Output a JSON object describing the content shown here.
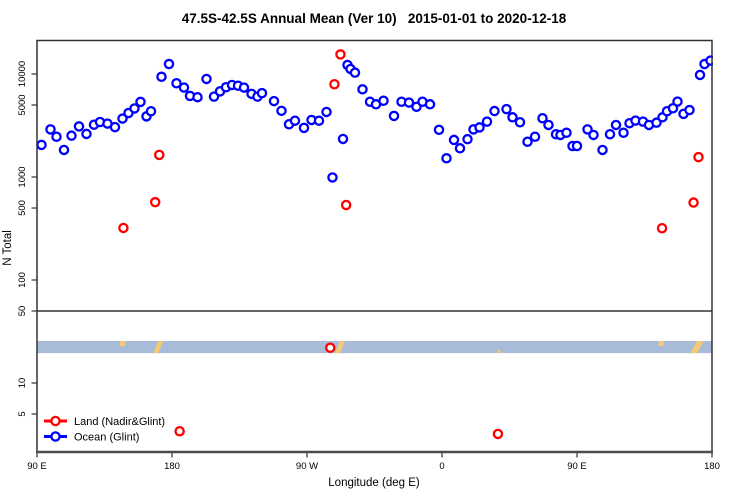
{
  "chart_data": {
    "type": "scatter",
    "title": "47.5S-42.5S Annual Mean (Ver 10)   2015-01-01 to 2020-12-18",
    "xlabel": "Longitude (deg E)",
    "ylabel": "N Total",
    "y_scale": "log",
    "ylim": [
      2.1,
      21000
    ],
    "xlim_deg_east": [
      90,
      540
    ],
    "x_ticks": [
      {
        "label": "90 E",
        "lon": 90
      },
      {
        "label": "180",
        "lon": 180
      },
      {
        "label": "90 W",
        "lon": 270
      },
      {
        "label": "0",
        "lon": 360
      },
      {
        "label": "90 E",
        "lon": 450
      },
      {
        "label": "180",
        "lon": 540
      }
    ],
    "y_ticks": [
      {
        "label": "10000",
        "value": 10000
      },
      {
        "label": "5000",
        "value": 5000
      },
      {
        "label": "1000",
        "value": 1000
      },
      {
        "label": "500",
        "value": 500
      },
      {
        "label": "100",
        "value": 100
      },
      {
        "label": "50",
        "value": 50
      },
      {
        "label": "10",
        "value": 10
      },
      {
        "label": "5",
        "value": 5
      }
    ],
    "ref_line_value": 50,
    "series": [
      {
        "name": "Ocean (Glint)",
        "color": "#0000ff",
        "points": [
          [
            93,
            2050
          ],
          [
            99,
            2900
          ],
          [
            103,
            2460
          ],
          [
            108,
            1830
          ],
          [
            113,
            2520
          ],
          [
            118,
            3100
          ],
          [
            123,
            2620
          ],
          [
            128,
            3220
          ],
          [
            132,
            3420
          ],
          [
            137,
            3300
          ],
          [
            142,
            3050
          ],
          [
            147,
            3690
          ],
          [
            151,
            4180
          ],
          [
            155,
            4630
          ],
          [
            159,
            5360
          ],
          [
            163,
            3880
          ],
          [
            166,
            4350
          ],
          [
            173,
            9400
          ],
          [
            178,
            12500
          ],
          [
            183,
            8130
          ],
          [
            188,
            7380
          ],
          [
            192,
            6130
          ],
          [
            197,
            5950
          ],
          [
            203,
            8950
          ],
          [
            208,
            6030
          ],
          [
            212,
            6780
          ],
          [
            216,
            7440
          ],
          [
            220,
            7830
          ],
          [
            224,
            7700
          ],
          [
            228,
            7380
          ],
          [
            233,
            6420
          ],
          [
            237,
            6030
          ],
          [
            240,
            6520
          ],
          [
            248,
            5460
          ],
          [
            253,
            4390
          ],
          [
            258,
            3250
          ],
          [
            262,
            3520
          ],
          [
            268,
            3000
          ],
          [
            273,
            3580
          ],
          [
            278,
            3520
          ],
          [
            283,
            4280
          ],
          [
            287,
            990
          ],
          [
            294,
            2340
          ],
          [
            297,
            12230
          ],
          [
            299,
            11190
          ],
          [
            302,
            10300
          ],
          [
            307,
            7100
          ],
          [
            312,
            5380
          ],
          [
            316,
            5080
          ],
          [
            321,
            5500
          ],
          [
            328,
            3920
          ],
          [
            333,
            5380
          ],
          [
            338,
            5280
          ],
          [
            343,
            4800
          ],
          [
            347,
            5380
          ],
          [
            352,
            5080
          ],
          [
            358,
            2870
          ],
          [
            363,
            1520
          ],
          [
            368,
            2290
          ],
          [
            372,
            1900
          ],
          [
            377,
            2330
          ],
          [
            381,
            2900
          ],
          [
            385,
            3030
          ],
          [
            390,
            3450
          ],
          [
            395,
            4370
          ],
          [
            403,
            4560
          ],
          [
            407,
            3800
          ],
          [
            412,
            3400
          ],
          [
            417,
            2200
          ],
          [
            422,
            2460
          ],
          [
            427,
            3720
          ],
          [
            431,
            3200
          ],
          [
            436,
            2600
          ],
          [
            439,
            2560
          ],
          [
            443,
            2690
          ],
          [
            447,
            2000
          ],
          [
            450,
            2000
          ],
          [
            457,
            2900
          ],
          [
            461,
            2560
          ],
          [
            467,
            1830
          ],
          [
            472,
            2600
          ],
          [
            476,
            3200
          ],
          [
            481,
            2690
          ],
          [
            485,
            3330
          ],
          [
            489,
            3530
          ],
          [
            494,
            3450
          ],
          [
            498,
            3200
          ],
          [
            503,
            3370
          ],
          [
            507,
            3800
          ],
          [
            510,
            4350
          ],
          [
            514,
            4650
          ],
          [
            517,
            5400
          ],
          [
            521,
            4100
          ],
          [
            525,
            4470
          ],
          [
            532,
            9800
          ],
          [
            535,
            12500
          ],
          [
            539,
            13500
          ]
        ]
      },
      {
        "name": "Land (Nadir&Glint)",
        "color": "#ff0000",
        "points": [
          [
            147.6,
            320
          ],
          [
            168.8,
            570
          ],
          [
            171.5,
            1640
          ],
          [
            185.1,
            3.4
          ],
          [
            285.5,
            22
          ],
          [
            288.3,
            7950
          ],
          [
            292.3,
            15500
          ],
          [
            296.1,
            535
          ],
          [
            397.3,
            3.2
          ],
          [
            506.7,
            318
          ],
          [
            527.7,
            565
          ],
          [
            531,
            1560
          ]
        ]
      }
    ],
    "map_band": {
      "top_value": 25.6,
      "bottom_value": 19.5,
      "ocean_color": "#a8bcda",
      "land_color": "#f6c974",
      "land_patches": [
        {
          "lon0": 145.3,
          "lon1": 148.6,
          "part": "top",
          "slant": false
        },
        {
          "lon0": 167.5,
          "lon1": 174.2,
          "part": "full",
          "slant": true
        },
        {
          "lon0": 288.7,
          "lon1": 295.3,
          "part": "full",
          "slant": true
        },
        {
          "lon0": 397.3,
          "lon1": 398.9,
          "part": "bottom",
          "slant": false
        },
        {
          "lon0": 504.4,
          "lon1": 507.7,
          "part": "top",
          "slant": false
        },
        {
          "lon0": 525.5,
          "lon1": 534.4,
          "part": "full",
          "slant": true
        }
      ]
    },
    "legend": {
      "position": "bottom-left",
      "items": [
        {
          "label": "Land (Nadir&Glint)",
          "color": "#ff0000"
        },
        {
          "label": "Ocean (Glint)",
          "color": "#0000ff"
        }
      ]
    },
    "colors": {
      "land": "#ff0000",
      "ocean": "#0000ff",
      "axis": "#333333",
      "band_ocean": "#a8bcda",
      "band_land": "#f6c974"
    }
  }
}
